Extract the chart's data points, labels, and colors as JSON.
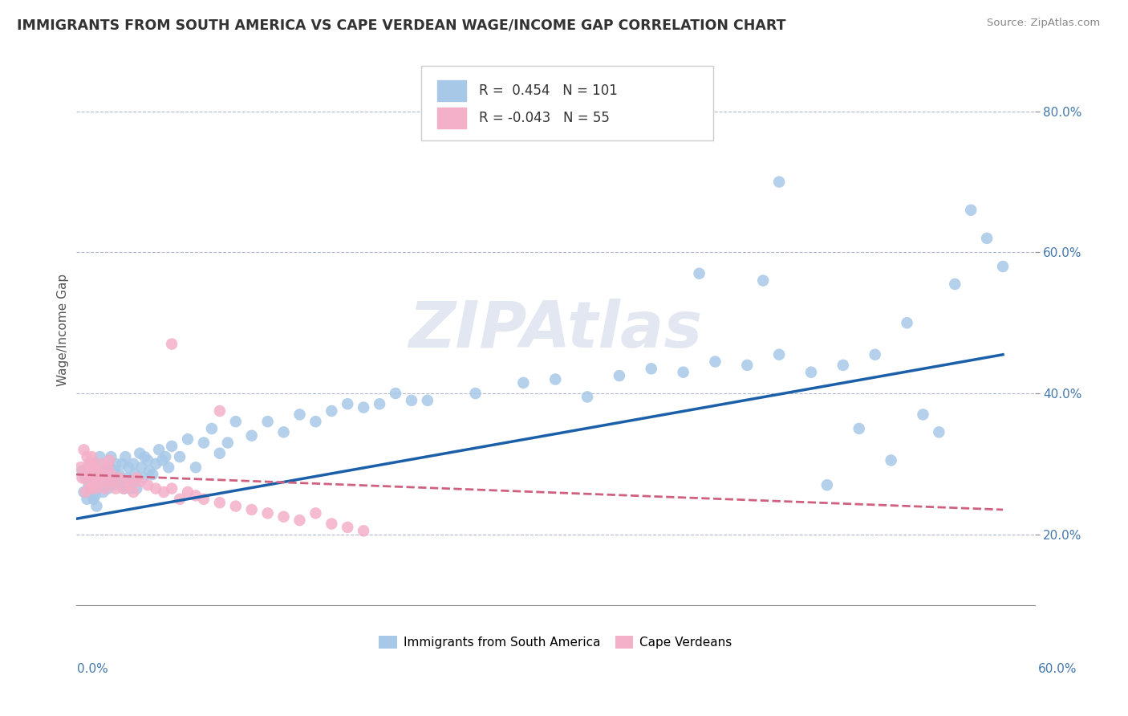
{
  "title": "IMMIGRANTS FROM SOUTH AMERICA VS CAPE VERDEAN WAGE/INCOME GAP CORRELATION CHART",
  "source": "Source: ZipAtlas.com",
  "ylabel": "Wage/Income Gap",
  "xlim": [
    0.0,
    0.6
  ],
  "ylim": [
    0.1,
    0.88
  ],
  "yticks": [
    0.2,
    0.4,
    0.6,
    0.8
  ],
  "ytick_labels": [
    "20.0%",
    "40.0%",
    "60.0%",
    "80.0%"
  ],
  "blue_color": "#a8c8e8",
  "pink_color": "#f4b0c8",
  "blue_line_color": "#1a5fa8",
  "pink_line_color": "#d06080",
  "watermark": "ZIPAtlas",
  "blue_line_x": [
    0.0,
    0.58
  ],
  "blue_line_y": [
    0.222,
    0.455
  ],
  "pink_line_x": [
    0.0,
    0.58
  ],
  "pink_line_y": [
    0.285,
    0.235
  ],
  "blue_x": [
    0.004,
    0.005,
    0.006,
    0.007,
    0.008,
    0.009,
    0.01,
    0.01,
    0.01,
    0.011,
    0.011,
    0.012,
    0.012,
    0.013,
    0.013,
    0.014,
    0.015,
    0.015,
    0.016,
    0.017,
    0.018,
    0.019,
    0.02,
    0.021,
    0.022,
    0.022,
    0.023,
    0.024,
    0.025,
    0.026,
    0.027,
    0.028,
    0.029,
    0.03,
    0.031,
    0.032,
    0.033,
    0.034,
    0.035,
    0.036,
    0.037,
    0.038,
    0.04,
    0.041,
    0.042,
    0.043,
    0.045,
    0.046,
    0.048,
    0.05,
    0.052,
    0.054,
    0.056,
    0.058,
    0.06,
    0.065,
    0.07,
    0.075,
    0.08,
    0.085,
    0.09,
    0.095,
    0.1,
    0.11,
    0.12,
    0.13,
    0.14,
    0.15,
    0.16,
    0.17,
    0.18,
    0.19,
    0.2,
    0.21,
    0.22,
    0.25,
    0.28,
    0.3,
    0.32,
    0.34,
    0.36,
    0.38,
    0.4,
    0.42,
    0.44,
    0.46,
    0.48,
    0.5,
    0.53,
    0.54,
    0.55,
    0.56,
    0.57,
    0.58,
    0.43,
    0.39,
    0.44,
    0.52,
    0.49,
    0.51,
    0.47
  ],
  "blue_y": [
    0.29,
    0.26,
    0.28,
    0.25,
    0.27,
    0.3,
    0.27,
    0.26,
    0.295,
    0.25,
    0.285,
    0.255,
    0.3,
    0.27,
    0.24,
    0.29,
    0.275,
    0.31,
    0.285,
    0.26,
    0.295,
    0.27,
    0.265,
    0.295,
    0.28,
    0.31,
    0.27,
    0.29,
    0.3,
    0.275,
    0.285,
    0.27,
    0.3,
    0.265,
    0.31,
    0.28,
    0.295,
    0.265,
    0.275,
    0.3,
    0.285,
    0.265,
    0.315,
    0.295,
    0.28,
    0.31,
    0.305,
    0.29,
    0.285,
    0.3,
    0.32,
    0.305,
    0.31,
    0.295,
    0.325,
    0.31,
    0.335,
    0.295,
    0.33,
    0.35,
    0.315,
    0.33,
    0.36,
    0.34,
    0.36,
    0.345,
    0.37,
    0.36,
    0.375,
    0.385,
    0.38,
    0.385,
    0.4,
    0.39,
    0.39,
    0.4,
    0.415,
    0.42,
    0.395,
    0.425,
    0.435,
    0.43,
    0.445,
    0.44,
    0.455,
    0.43,
    0.44,
    0.455,
    0.37,
    0.345,
    0.555,
    0.66,
    0.62,
    0.58,
    0.56,
    0.57,
    0.7,
    0.5,
    0.35,
    0.305,
    0.27
  ],
  "pink_x": [
    0.003,
    0.004,
    0.005,
    0.006,
    0.007,
    0.007,
    0.008,
    0.008,
    0.009,
    0.009,
    0.01,
    0.01,
    0.011,
    0.011,
    0.012,
    0.012,
    0.013,
    0.014,
    0.015,
    0.016,
    0.017,
    0.018,
    0.019,
    0.02,
    0.021,
    0.022,
    0.023,
    0.025,
    0.027,
    0.03,
    0.032,
    0.034,
    0.036,
    0.038,
    0.04,
    0.045,
    0.05,
    0.055,
    0.06,
    0.065,
    0.07,
    0.075,
    0.08,
    0.09,
    0.1,
    0.11,
    0.12,
    0.13,
    0.14,
    0.15,
    0.16,
    0.17,
    0.18,
    0.06,
    0.09
  ],
  "pink_y": [
    0.295,
    0.28,
    0.32,
    0.26,
    0.29,
    0.31,
    0.275,
    0.3,
    0.265,
    0.285,
    0.295,
    0.31,
    0.27,
    0.3,
    0.285,
    0.265,
    0.29,
    0.275,
    0.28,
    0.3,
    0.285,
    0.265,
    0.275,
    0.295,
    0.305,
    0.285,
    0.275,
    0.265,
    0.28,
    0.265,
    0.275,
    0.27,
    0.26,
    0.28,
    0.275,
    0.27,
    0.265,
    0.26,
    0.265,
    0.25,
    0.26,
    0.255,
    0.25,
    0.245,
    0.24,
    0.235,
    0.23,
    0.225,
    0.22,
    0.23,
    0.215,
    0.21,
    0.205,
    0.47,
    0.375
  ]
}
